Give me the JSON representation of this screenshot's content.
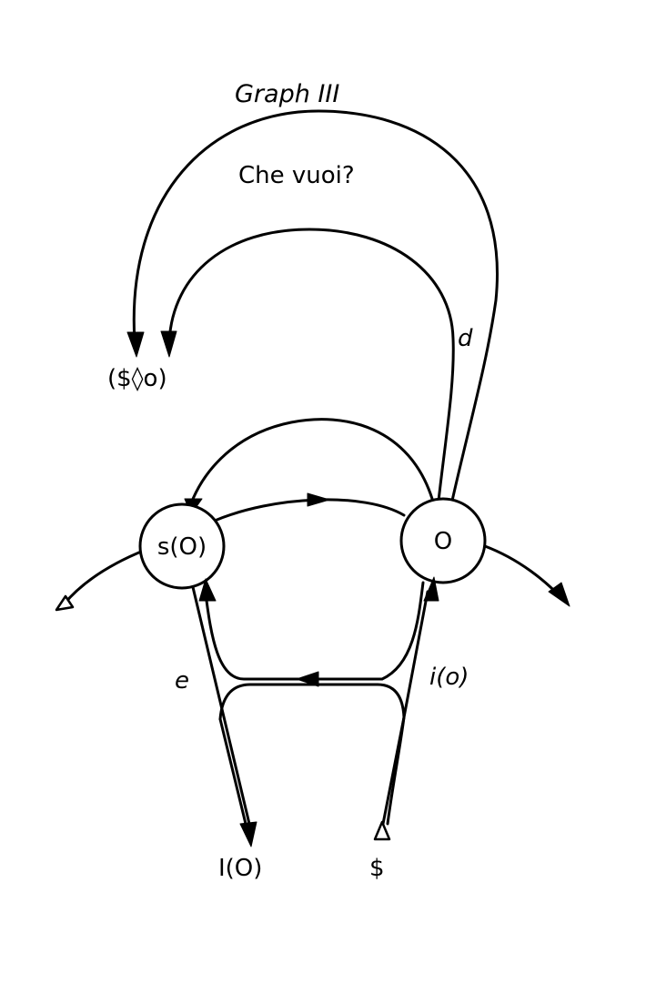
{
  "title": "Graph III",
  "question": "Che vuoi?",
  "nodes": {
    "signified": "s(O)",
    "other": "O"
  },
  "labels": {
    "fantasy": "($◊o)",
    "desire": "d",
    "ego": "e",
    "ego_image": "i(o)",
    "ego_ideal": "I(O)",
    "subject": "$"
  },
  "colors": {
    "ink": "#000000",
    "paper": "#ffffff"
  }
}
